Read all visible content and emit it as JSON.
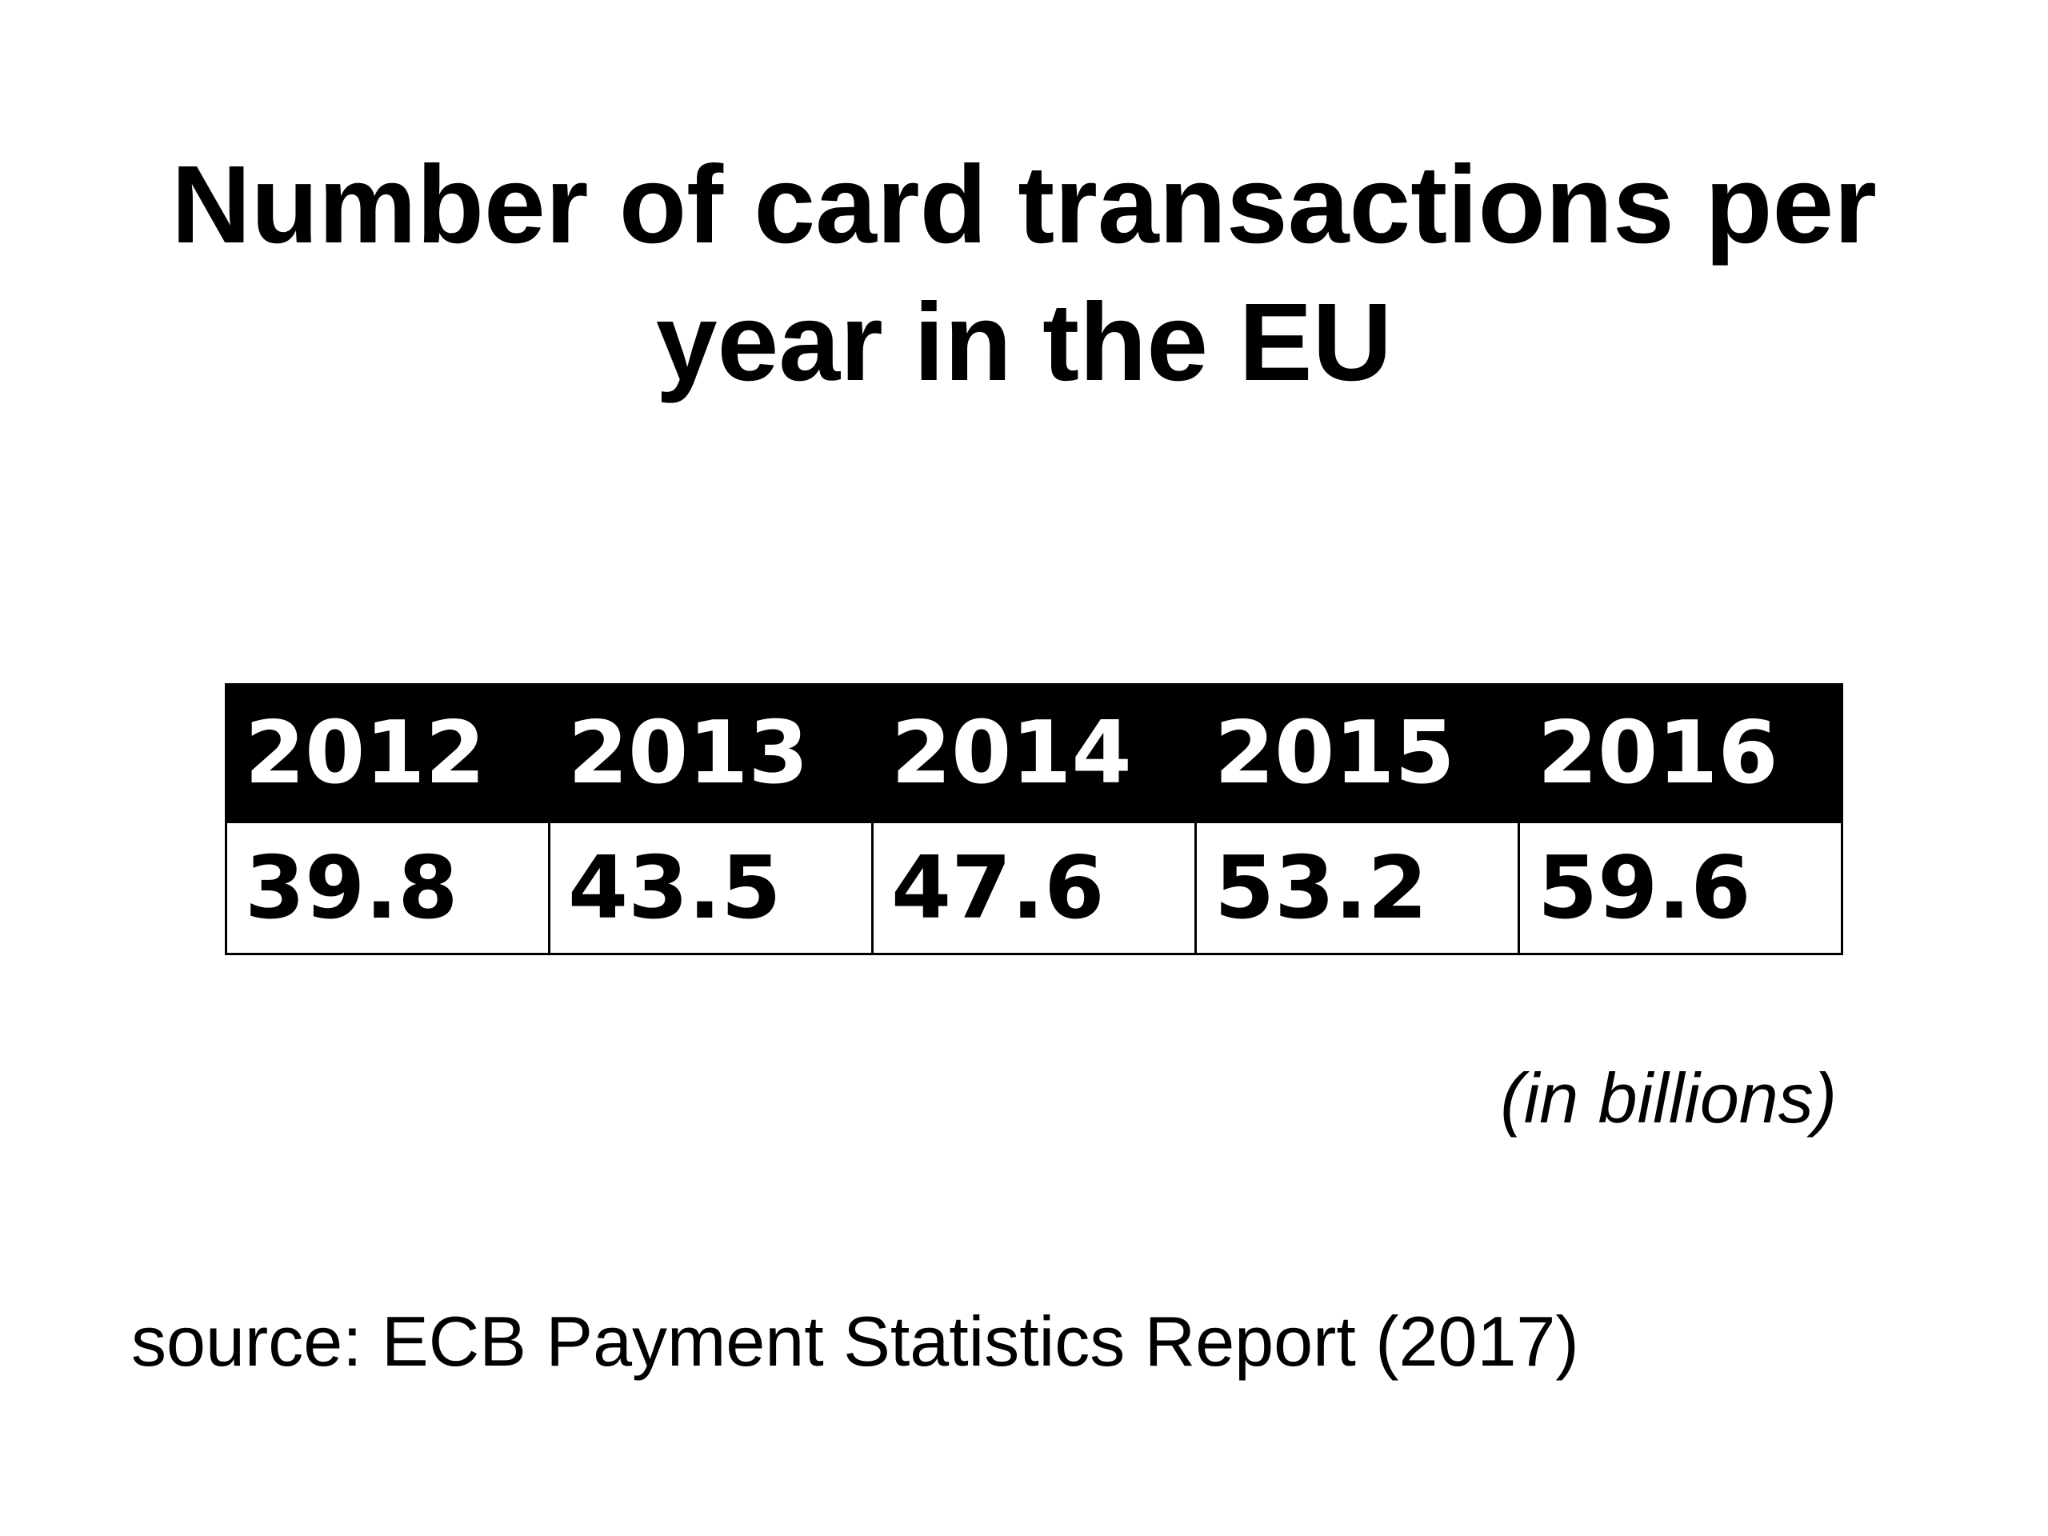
{
  "title_line1": "Number of card transactions per",
  "title_line2": "year in the EU",
  "unit_note": "(in billions)",
  "source": "source: ECB Payment Statistics Report (2017)",
  "colors": {
    "header_bg": "#000000",
    "header_text": "#ffffff",
    "body_text": "#000000",
    "background": "#ffffff"
  },
  "chart_data": {
    "type": "table",
    "title": "Number of card transactions per year in the EU",
    "unit": "(in billions)",
    "categories": [
      "2012",
      "2013",
      "2014",
      "2015",
      "2016"
    ],
    "values": [
      "39.8",
      "43.5",
      "47.6",
      "53.2",
      "59.6"
    ]
  }
}
